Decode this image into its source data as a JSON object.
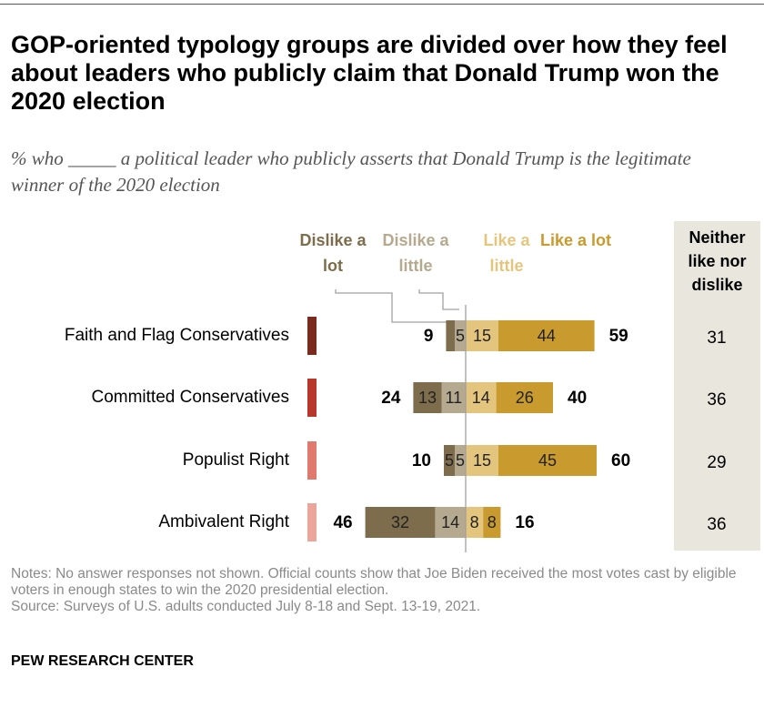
{
  "chart_data": {
    "type": "diverging-bar",
    "title": "GOP-oriented typology groups are divided over how they feel about leaders who publicly claim that Donald Trump won the 2020 election",
    "subtitle": "% who _____ a political leader who publicly asserts that Donald Trump is the legitimate winner of the 2020 election",
    "categories": [
      "Faith and Flag Conservatives",
      "Committed Conservatives",
      "Populist Right",
      "Ambivalent Right"
    ],
    "category_colors": [
      "#7b2a1e",
      "#b8372a",
      "#e07a6e",
      "#eba59b"
    ],
    "series": [
      {
        "name": "Dislike a lot",
        "color": "#7d6d4c",
        "side": "dislike",
        "values": [
          4,
          13,
          5,
          32
        ]
      },
      {
        "name": "Dislike a little",
        "color": "#b5aa90",
        "side": "dislike",
        "values": [
          5,
          11,
          5,
          14
        ]
      },
      {
        "name": "Like a little",
        "color": "#e4c57e",
        "side": "like",
        "values": [
          15,
          14,
          15,
          8
        ]
      },
      {
        "name": "Like a lot",
        "color": "#c99a2e",
        "side": "like",
        "values": [
          44,
          26,
          45,
          8
        ]
      }
    ],
    "dislike_totals": [
      9,
      24,
      10,
      46
    ],
    "like_totals": [
      59,
      40,
      60,
      16
    ],
    "neither": {
      "name": "Neither like nor dislike",
      "values": [
        31,
        36,
        29,
        36
      ]
    },
    "notes": "Notes: No answer responses not shown. Official counts show that Joe Biden received the most votes cast by eligible voters in enough states to win the 2020 presidential election.",
    "source": "Source: Surveys of U.S. adults conducted July 8-18 and Sept. 13-19, 2021.",
    "brand": "PEW RESEARCH CENTER"
  }
}
